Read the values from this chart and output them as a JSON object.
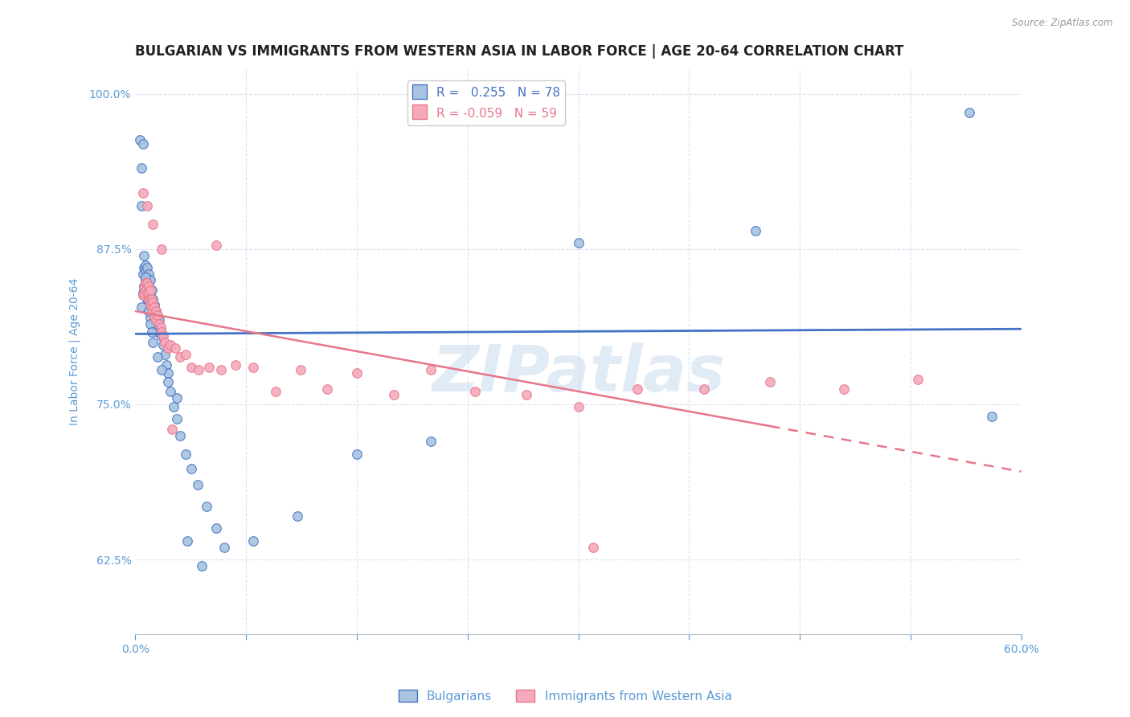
{
  "title": "BULGARIAN VS IMMIGRANTS FROM WESTERN ASIA IN LABOR FORCE | AGE 20-64 CORRELATION CHART",
  "source": "Source: ZipAtlas.com",
  "ylabel": "In Labor Force | Age 20-64",
  "blue_R": 0.255,
  "blue_N": 78,
  "pink_R": -0.059,
  "pink_N": 59,
  "blue_color": "#A8C4E0",
  "pink_color": "#F4AABB",
  "blue_line_color": "#4472C4",
  "pink_line_color": "#E8768A",
  "legend_label_blue": "Bulgarians",
  "legend_label_pink": "Immigrants from Western Asia",
  "xlim": [
    0.0,
    0.6
  ],
  "ylim": [
    0.565,
    1.02
  ],
  "yticks": [
    0.625,
    0.75,
    0.875,
    1.0
  ],
  "ytick_labels": [
    "62.5%",
    "75.0%",
    "87.5%",
    "100.0%"
  ],
  "xticks": [
    0.0,
    0.075,
    0.15,
    0.225,
    0.3,
    0.375,
    0.45,
    0.525,
    0.6
  ],
  "xtick_labels": [
    "0.0%",
    "",
    "",
    "",
    "",
    "",
    "",
    "",
    "60.0%"
  ],
  "background_color": "#FFFFFF",
  "watermark_text": "ZIPatlas",
  "watermark_color": "#C8DCEE",
  "tick_color": "#5B9BD5",
  "grid_color": "#D9E1F2",
  "title_fontsize": 12,
  "label_fontsize": 10,
  "tick_fontsize": 10,
  "legend_fontsize": 11,
  "blue_x": [
    0.003,
    0.004,
    0.004,
    0.005,
    0.005,
    0.005,
    0.006,
    0.006,
    0.006,
    0.007,
    0.007,
    0.007,
    0.007,
    0.008,
    0.008,
    0.008,
    0.008,
    0.009,
    0.009,
    0.009,
    0.009,
    0.009,
    0.01,
    0.01,
    0.01,
    0.01,
    0.01,
    0.011,
    0.011,
    0.011,
    0.012,
    0.012,
    0.013,
    0.013,
    0.014,
    0.014,
    0.015,
    0.015,
    0.016,
    0.017,
    0.018,
    0.019,
    0.02,
    0.021,
    0.022,
    0.024,
    0.026,
    0.028,
    0.03,
    0.034,
    0.038,
    0.042,
    0.048,
    0.055,
    0.004,
    0.005,
    0.006,
    0.007,
    0.008,
    0.009,
    0.01,
    0.011,
    0.012,
    0.015,
    0.018,
    0.022,
    0.028,
    0.035,
    0.045,
    0.06,
    0.08,
    0.11,
    0.15,
    0.2,
    0.3,
    0.42,
    0.565,
    0.58
  ],
  "blue_y": [
    0.963,
    0.94,
    0.91,
    0.96,
    0.855,
    0.84,
    0.87,
    0.86,
    0.845,
    0.85,
    0.858,
    0.862,
    0.838,
    0.852,
    0.86,
    0.845,
    0.835,
    0.855,
    0.848,
    0.838,
    0.85,
    0.842,
    0.85,
    0.842,
    0.835,
    0.828,
    0.82,
    0.842,
    0.835,
    0.828,
    0.835,
    0.825,
    0.83,
    0.818,
    0.825,
    0.812,
    0.82,
    0.808,
    0.818,
    0.81,
    0.805,
    0.798,
    0.79,
    0.782,
    0.775,
    0.76,
    0.748,
    0.738,
    0.725,
    0.71,
    0.698,
    0.685,
    0.668,
    0.65,
    0.828,
    0.838,
    0.845,
    0.852,
    0.835,
    0.825,
    0.815,
    0.808,
    0.8,
    0.788,
    0.778,
    0.768,
    0.755,
    0.64,
    0.62,
    0.635,
    0.64,
    0.66,
    0.71,
    0.72,
    0.88,
    0.89,
    0.985,
    0.74
  ],
  "pink_x": [
    0.005,
    0.006,
    0.006,
    0.007,
    0.007,
    0.008,
    0.008,
    0.009,
    0.009,
    0.009,
    0.01,
    0.01,
    0.01,
    0.011,
    0.011,
    0.012,
    0.012,
    0.013,
    0.013,
    0.014,
    0.014,
    0.015,
    0.016,
    0.017,
    0.018,
    0.019,
    0.02,
    0.022,
    0.024,
    0.027,
    0.03,
    0.034,
    0.038,
    0.043,
    0.05,
    0.058,
    0.068,
    0.08,
    0.095,
    0.112,
    0.13,
    0.15,
    0.175,
    0.2,
    0.23,
    0.265,
    0.3,
    0.34,
    0.385,
    0.43,
    0.48,
    0.53,
    0.005,
    0.008,
    0.012,
    0.018,
    0.025,
    0.055,
    0.31
  ],
  "pink_y": [
    0.838,
    0.845,
    0.84,
    0.848,
    0.842,
    0.848,
    0.84,
    0.845,
    0.835,
    0.84,
    0.842,
    0.835,
    0.83,
    0.835,
    0.828,
    0.832,
    0.825,
    0.828,
    0.82,
    0.825,
    0.818,
    0.822,
    0.815,
    0.812,
    0.808,
    0.805,
    0.8,
    0.795,
    0.798,
    0.795,
    0.788,
    0.79,
    0.78,
    0.778,
    0.78,
    0.778,
    0.782,
    0.78,
    0.76,
    0.778,
    0.762,
    0.775,
    0.758,
    0.778,
    0.76,
    0.758,
    0.748,
    0.762,
    0.762,
    0.768,
    0.762,
    0.77,
    0.92,
    0.91,
    0.895,
    0.875,
    0.73,
    0.878,
    0.635
  ]
}
